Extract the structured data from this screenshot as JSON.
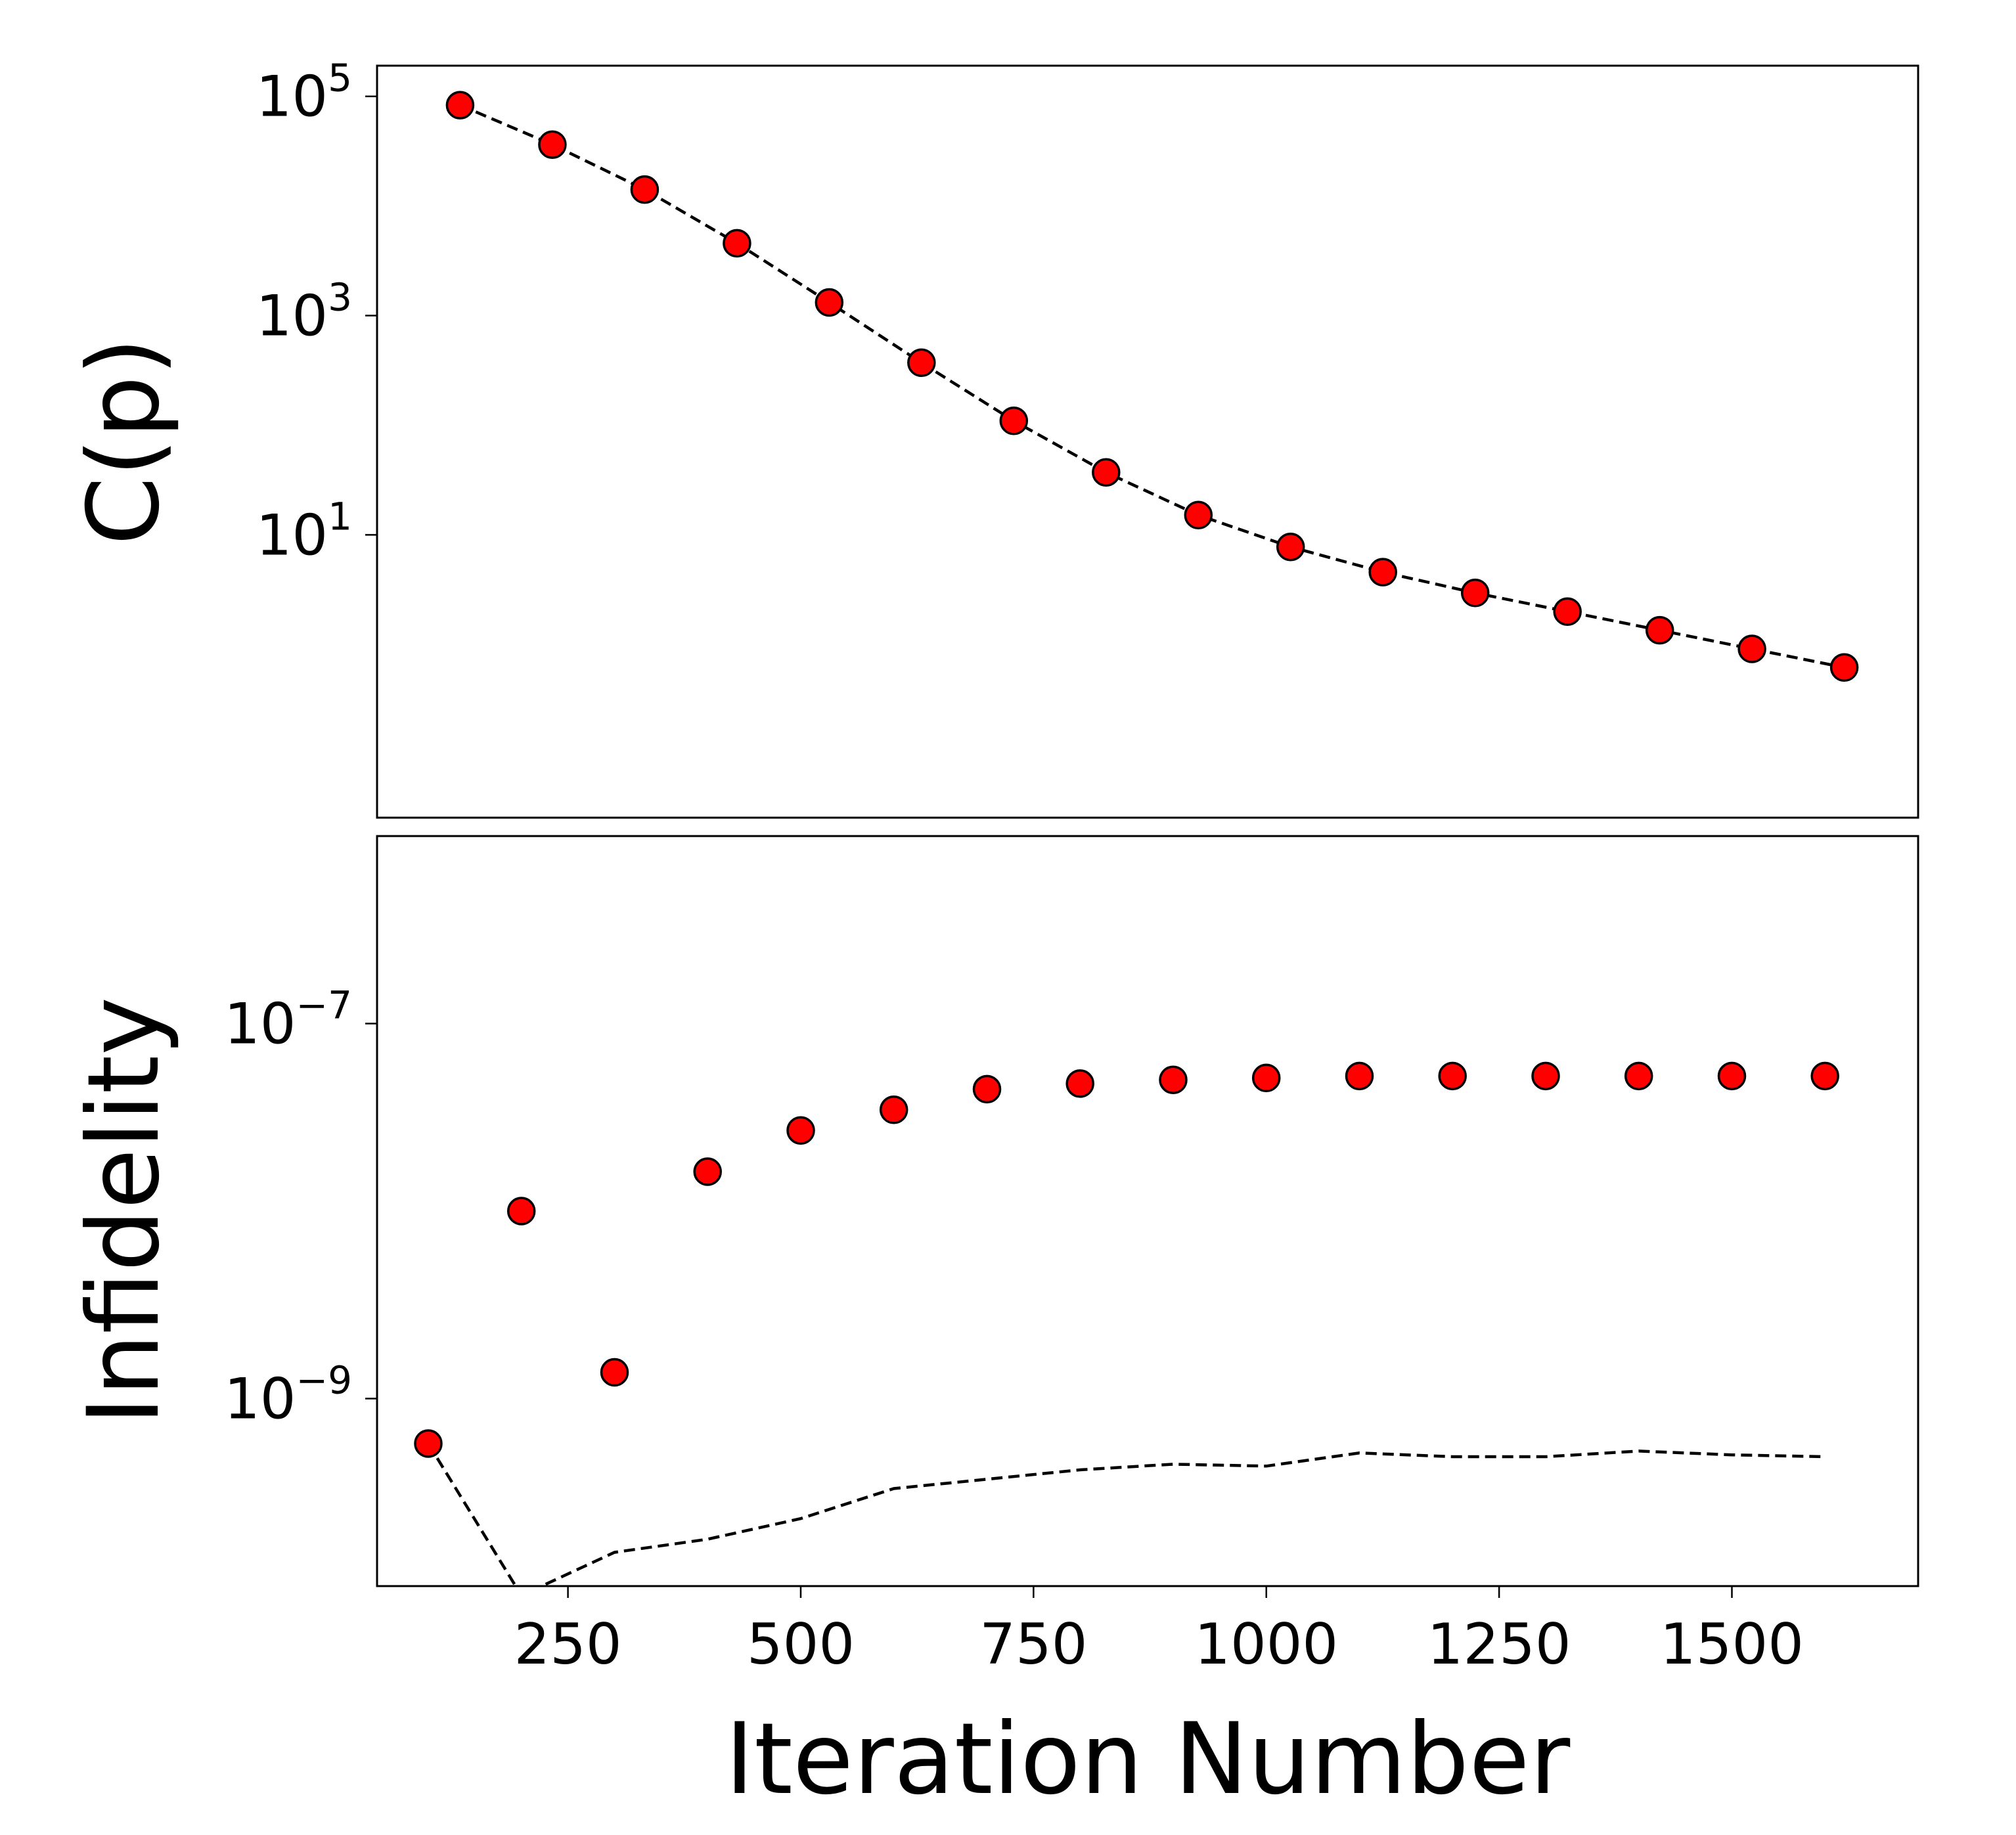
{
  "chart_data": [
    {
      "type": "scatter",
      "panel": "top",
      "title": "",
      "xlabel": "",
      "ylabel": "C(p)",
      "yscale": "log",
      "xlim": [
        -50,
        1620
      ],
      "ylim_log10": [
        -1.58,
        5.28
      ],
      "yticks": [
        {
          "base": "10",
          "exp": "1",
          "log10": 1
        },
        {
          "base": "10",
          "exp": "3",
          "log10": 3
        },
        {
          "base": "10",
          "exp": "5",
          "log10": 5
        }
      ],
      "marker_color": "#ff0000",
      "line_color": "#000000",
      "series": [
        {
          "name": "C(p)",
          "x": [
            40,
            140,
            240,
            340,
            440,
            540,
            640,
            740,
            840,
            940,
            1040,
            1140,
            1240,
            1340,
            1440,
            1540
          ],
          "y_log10": [
            4.92,
            4.56,
            4.15,
            3.66,
            3.12,
            2.57,
            2.04,
            1.57,
            1.18,
            0.89,
            0.66,
            0.47,
            0.3,
            0.13,
            -0.04,
            -0.21
          ],
          "show_line": true,
          "show_markers": true
        }
      ]
    },
    {
      "type": "scatter",
      "panel": "bottom",
      "title": "",
      "xlabel": "Iteration Number",
      "ylabel": "Infidelity",
      "yscale": "log",
      "xlim": [
        45,
        1700
      ],
      "ylim_log10": [
        -10.0,
        -6.0
      ],
      "xticks": [
        "250",
        "500",
        "750",
        "1000",
        "1250",
        "1500"
      ],
      "xtick_values": [
        250,
        500,
        750,
        1000,
        1250,
        1500
      ],
      "yticks": [
        {
          "base": "10",
          "exp": "−9",
          "log10": -9
        },
        {
          "base": "10",
          "exp": "−7",
          "log10": -7
        }
      ],
      "marker_color": "#ff0000",
      "line_color": "#000000",
      "series": [
        {
          "name": "infidelity-markers",
          "x": [
            100,
            200,
            300,
            400,
            500,
            600,
            700,
            800,
            900,
            1000,
            1100,
            1200,
            1300,
            1400,
            1500,
            1600
          ],
          "y_log10": [
            -9.24,
            -8.0,
            -8.86,
            -7.79,
            -7.57,
            -7.46,
            -7.35,
            -7.32,
            -7.3,
            -7.29,
            -7.28,
            -7.28,
            -7.28,
            -7.28,
            -7.28,
            -7.28
          ],
          "show_line": false,
          "show_markers": true
        },
        {
          "name": "infidelity-dashed",
          "x": [
            100,
            200,
            300,
            400,
            500,
            600,
            700,
            800,
            900,
            1000,
            1100,
            1200,
            1300,
            1400,
            1500,
            1600
          ],
          "y_log10": [
            -9.24,
            -10.05,
            -9.82,
            -9.75,
            -9.64,
            -9.48,
            -9.43,
            -9.38,
            -9.35,
            -9.36,
            -9.29,
            -9.31,
            -9.31,
            -9.28,
            -9.3,
            -9.31
          ],
          "show_line": true,
          "show_markers": false
        }
      ]
    }
  ]
}
